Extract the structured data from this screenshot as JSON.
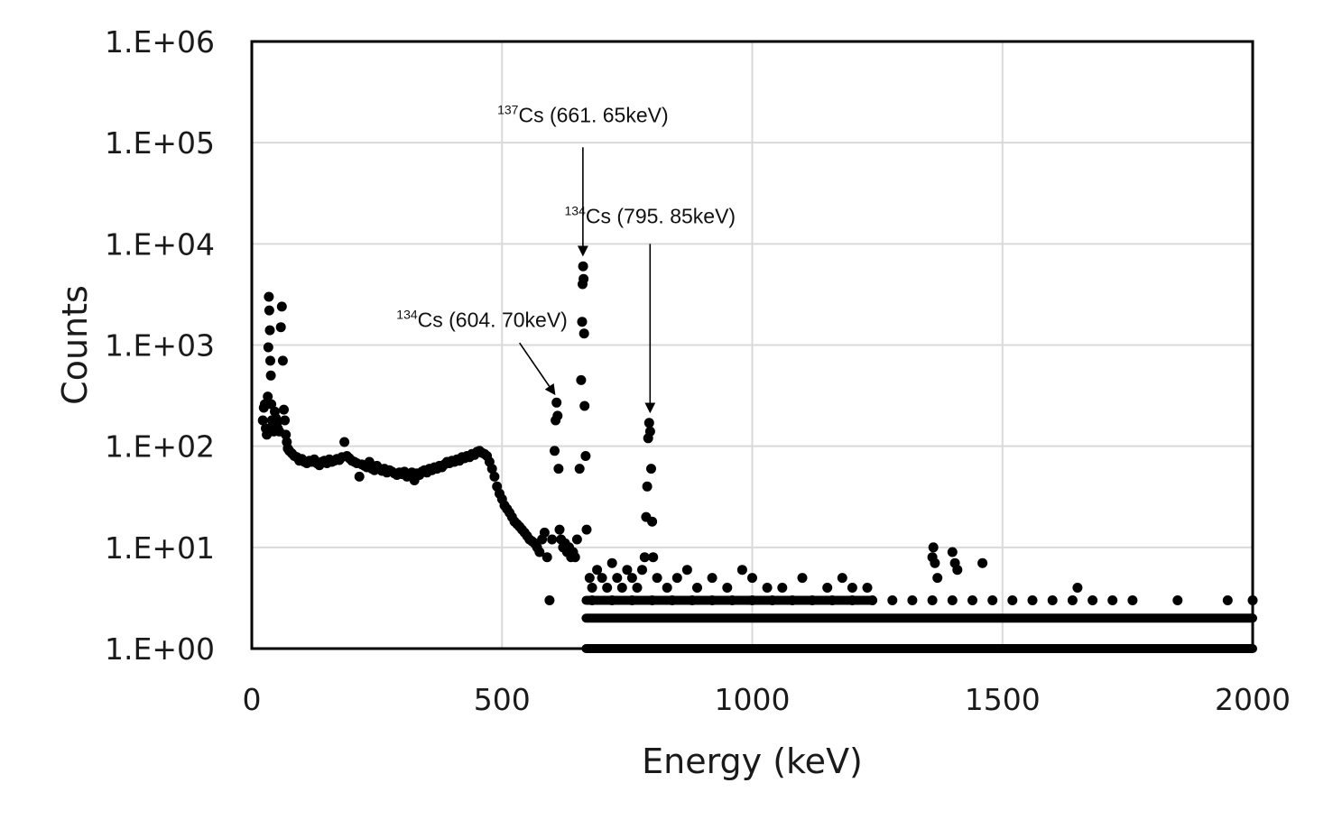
{
  "chart_data": {
    "type": "scatter",
    "title": "",
    "xlabel": "Energy (keV)",
    "ylabel": "Counts",
    "xlim": [
      0,
      2000
    ],
    "ylim": [
      1,
      1000000
    ],
    "yscale": "log",
    "grid": true,
    "legend": "none",
    "x_ticks": [
      {
        "value": 0,
        "label": "0"
      },
      {
        "value": 500,
        "label": "500"
      },
      {
        "value": 1000,
        "label": "1000"
      },
      {
        "value": 1500,
        "label": "1500"
      },
      {
        "value": 2000,
        "label": "2000"
      }
    ],
    "y_ticks": [
      {
        "value": 1,
        "label": "1.E+00"
      },
      {
        "value": 10,
        "label": "1.E+01"
      },
      {
        "value": 100,
        "label": "1.E+02"
      },
      {
        "value": 1000,
        "label": "1.E+03"
      },
      {
        "value": 10000,
        "label": "1.E+04"
      },
      {
        "value": 100000,
        "label": "1.E+05"
      },
      {
        "value": 1000000,
        "label": "1.E+06"
      }
    ],
    "series_color": "#000000",
    "points": [
      [
        22,
        180
      ],
      [
        24,
        240
      ],
      [
        26,
        260
      ],
      [
        28,
        150
      ],
      [
        30,
        130
      ],
      [
        32,
        310
      ],
      [
        33,
        950
      ],
      [
        34,
        3000
      ],
      [
        35,
        2200
      ],
      [
        36,
        1400
      ],
      [
        37,
        700
      ],
      [
        38,
        500
      ],
      [
        39,
        260
      ],
      [
        40,
        180
      ],
      [
        42,
        160
      ],
      [
        44,
        140
      ],
      [
        46,
        220
      ],
      [
        48,
        190
      ],
      [
        50,
        170
      ],
      [
        52,
        150
      ],
      [
        55,
        140
      ],
      [
        58,
        1500
      ],
      [
        60,
        2400
      ],
      [
        62,
        700
      ],
      [
        64,
        230
      ],
      [
        66,
        180
      ],
      [
        68,
        130
      ],
      [
        70,
        110
      ],
      [
        72,
        95
      ],
      [
        75,
        90
      ],
      [
        80,
        85
      ],
      [
        85,
        80
      ],
      [
        90,
        78
      ],
      [
        95,
        72
      ],
      [
        100,
        75
      ],
      [
        105,
        70
      ],
      [
        110,
        68
      ],
      [
        115,
        72
      ],
      [
        120,
        70
      ],
      [
        125,
        74
      ],
      [
        130,
        68
      ],
      [
        135,
        65
      ],
      [
        140,
        70
      ],
      [
        145,
        72
      ],
      [
        150,
        68
      ],
      [
        155,
        74
      ],
      [
        160,
        70
      ],
      [
        165,
        72
      ],
      [
        170,
        75
      ],
      [
        175,
        73
      ],
      [
        180,
        78
      ],
      [
        185,
        110
      ],
      [
        190,
        80
      ],
      [
        195,
        76
      ],
      [
        200,
        72
      ],
      [
        205,
        70
      ],
      [
        210,
        68
      ],
      [
        215,
        50
      ],
      [
        220,
        66
      ],
      [
        225,
        64
      ],
      [
        230,
        62
      ],
      [
        235,
        70
      ],
      [
        240,
        60
      ],
      [
        245,
        58
      ],
      [
        250,
        64
      ],
      [
        255,
        60
      ],
      [
        260,
        57
      ],
      [
        265,
        60
      ],
      [
        270,
        55
      ],
      [
        275,
        58
      ],
      [
        280,
        56
      ],
      [
        285,
        54
      ],
      [
        290,
        52
      ],
      [
        295,
        55
      ],
      [
        300,
        53
      ],
      [
        305,
        56
      ],
      [
        310,
        50
      ],
      [
        315,
        52
      ],
      [
        320,
        55
      ],
      [
        325,
        46
      ],
      [
        330,
        54
      ],
      [
        335,
        52
      ],
      [
        340,
        56
      ],
      [
        345,
        58
      ],
      [
        350,
        55
      ],
      [
        355,
        60
      ],
      [
        360,
        58
      ],
      [
        365,
        62
      ],
      [
        370,
        60
      ],
      [
        375,
        64
      ],
      [
        380,
        62
      ],
      [
        385,
        66
      ],
      [
        390,
        70
      ],
      [
        395,
        68
      ],
      [
        400,
        72
      ],
      [
        405,
        70
      ],
      [
        410,
        74
      ],
      [
        415,
        72
      ],
      [
        420,
        78
      ],
      [
        425,
        76
      ],
      [
        430,
        80
      ],
      [
        435,
        78
      ],
      [
        440,
        84
      ],
      [
        445,
        82
      ],
      [
        450,
        88
      ],
      [
        455,
        90
      ],
      [
        460,
        86
      ],
      [
        465,
        84
      ],
      [
        470,
        80
      ],
      [
        475,
        70
      ],
      [
        480,
        60
      ],
      [
        485,
        50
      ],
      [
        490,
        40
      ],
      [
        495,
        34
      ],
      [
        500,
        30
      ],
      [
        505,
        26
      ],
      [
        510,
        24
      ],
      [
        515,
        22
      ],
      [
        520,
        20
      ],
      [
        525,
        18
      ],
      [
        530,
        17
      ],
      [
        535,
        16
      ],
      [
        540,
        15
      ],
      [
        545,
        14
      ],
      [
        550,
        13
      ],
      [
        555,
        12
      ],
      [
        560,
        11.5
      ],
      [
        565,
        11
      ],
      [
        570,
        10
      ],
      [
        575,
        9
      ],
      [
        580,
        12
      ],
      [
        585,
        14
      ],
      [
        590,
        8
      ],
      [
        595,
        3
      ],
      [
        600,
        12
      ],
      [
        605,
        90
      ],
      [
        607,
        180
      ],
      [
        609,
        270
      ],
      [
        611,
        200
      ],
      [
        613,
        60
      ],
      [
        615,
        15
      ],
      [
        618,
        12
      ],
      [
        622,
        10
      ],
      [
        626,
        11
      ],
      [
        630,
        9
      ],
      [
        634,
        10
      ],
      [
        638,
        8
      ],
      [
        642,
        9
      ],
      [
        646,
        8
      ],
      [
        650,
        12
      ],
      [
        655,
        60
      ],
      [
        658,
        450
      ],
      [
        660,
        1700
      ],
      [
        661,
        4000
      ],
      [
        662,
        6000
      ],
      [
        663,
        4500
      ],
      [
        664,
        1300
      ],
      [
        665,
        250
      ],
      [
        667,
        80
      ],
      [
        669,
        15
      ],
      [
        675,
        5
      ],
      [
        680,
        4
      ],
      [
        690,
        6
      ],
      [
        700,
        5
      ],
      [
        710,
        4
      ],
      [
        720,
        7
      ],
      [
        730,
        5
      ],
      [
        740,
        4
      ],
      [
        750,
        6
      ],
      [
        760,
        5
      ],
      [
        770,
        4
      ],
      [
        780,
        6
      ],
      [
        785,
        8
      ],
      [
        788,
        20
      ],
      [
        790,
        40
      ],
      [
        792,
        120
      ],
      [
        794,
        170
      ],
      [
        796,
        140
      ],
      [
        798,
        60
      ],
      [
        800,
        18
      ],
      [
        802,
        8
      ],
      [
        810,
        5
      ],
      [
        830,
        4
      ],
      [
        850,
        5
      ],
      [
        870,
        6
      ],
      [
        890,
        4
      ],
      [
        920,
        5
      ],
      [
        950,
        4
      ],
      [
        980,
        6
      ],
      [
        1000,
        5
      ],
      [
        1030,
        4
      ],
      [
        1060,
        4
      ],
      [
        1100,
        5
      ],
      [
        1150,
        4
      ],
      [
        1180,
        5
      ],
      [
        1200,
        4
      ],
      [
        1230,
        4
      ],
      [
        1360,
        8
      ],
      [
        1362,
        10
      ],
      [
        1365,
        7
      ],
      [
        1370,
        5
      ],
      [
        1400,
        9
      ],
      [
        1405,
        7
      ],
      [
        1410,
        6
      ],
      [
        1460,
        7
      ],
      [
        1650,
        4
      ],
      [
        680,
        3
      ],
      [
        720,
        3
      ],
      [
        760,
        3
      ],
      [
        800,
        3
      ],
      [
        840,
        3
      ],
      [
        880,
        3
      ],
      [
        920,
        3
      ],
      [
        960,
        3
      ],
      [
        1000,
        3
      ],
      [
        1040,
        3
      ],
      [
        1080,
        3
      ],
      [
        1120,
        3
      ],
      [
        1160,
        3
      ],
      [
        1200,
        3
      ],
      [
        1240,
        3
      ],
      [
        1280,
        3
      ],
      [
        1320,
        3
      ],
      [
        1360,
        3
      ],
      [
        1400,
        3
      ],
      [
        1440,
        3
      ],
      [
        1480,
        3
      ],
      [
        1520,
        3
      ],
      [
        1560,
        3
      ],
      [
        1600,
        3
      ],
      [
        1640,
        3
      ],
      [
        1680,
        3
      ],
      [
        1720,
        3
      ],
      [
        1760,
        3
      ],
      [
        1850,
        3
      ],
      [
        1950,
        3
      ],
      [
        2000,
        3
      ]
    ],
    "bands": [
      {
        "y": 3,
        "x_from": 668,
        "x_to": 1240
      },
      {
        "y": 2,
        "x_from": 668,
        "x_to": 2000
      },
      {
        "y": 1,
        "x_from": 668,
        "x_to": 2000
      }
    ],
    "annotations": [
      {
        "sup": "137",
        "text": "Cs (661. 65keV)",
        "label_x": 661.65,
        "label_y": 160000,
        "arrow_from": [
          661.65,
          90000
        ],
        "arrow_to": [
          661.65,
          7800
        ]
      },
      {
        "sup": "134",
        "text": "Cs (795. 85keV)",
        "label_x": 795.85,
        "label_y": 16000,
        "arrow_from": [
          795.85,
          10000
        ],
        "arrow_to": [
          795.85,
          220
        ]
      },
      {
        "sup": "134",
        "text": "Cs (604. 70keV)",
        "label_x": 460,
        "label_y": 1500,
        "arrow_from": [
          535,
          1050
        ],
        "arrow_to": [
          604.7,
          330
        ]
      }
    ]
  }
}
